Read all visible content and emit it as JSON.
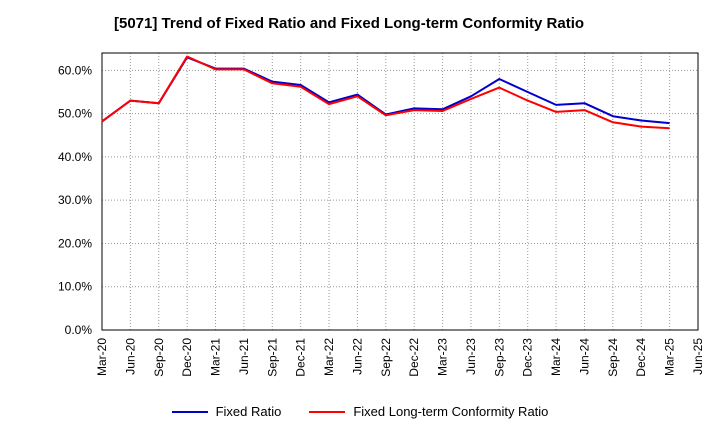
{
  "chart_data": {
    "type": "line",
    "title": "[5071]  Trend of Fixed Ratio and Fixed Long-term Conformity Ratio",
    "xlabel": "",
    "ylabel": "",
    "ylim": [
      0,
      64
    ],
    "grid": true,
    "legend_position": "bottom",
    "x_ticks": [
      "Mar-20",
      "Jun-20",
      "Sep-20",
      "Dec-20",
      "Mar-21",
      "Jun-21",
      "Sep-21",
      "Dec-21",
      "Mar-22",
      "Jun-22",
      "Sep-22",
      "Dec-22",
      "Mar-23",
      "Jun-23",
      "Sep-23",
      "Dec-23",
      "Mar-24",
      "Jun-24",
      "Sep-24",
      "Dec-24",
      "Mar-25",
      "Jun-25"
    ],
    "y_ticks": [
      "0.0%",
      "10.0%",
      "20.0%",
      "30.0%",
      "40.0%",
      "50.0%",
      "60.0%"
    ],
    "y_tick_values": [
      0,
      10,
      20,
      30,
      40,
      50,
      60
    ],
    "x": [
      "Mar-20",
      "Jun-20",
      "Sep-20",
      "Dec-20",
      "Mar-21",
      "Jun-21",
      "Sep-21",
      "Dec-21",
      "Mar-22",
      "Jun-22",
      "Sep-22",
      "Dec-22",
      "Mar-23",
      "Jun-23",
      "Sep-23",
      "Dec-23",
      "Mar-24",
      "Jun-24",
      "Sep-24",
      "Dec-24",
      "Mar-25"
    ],
    "series": [
      {
        "name": "Fixed Ratio",
        "color": "#0000cc",
        "values": [
          48.2,
          53.0,
          52.4,
          63.0,
          60.4,
          60.4,
          57.4,
          56.6,
          52.6,
          54.4,
          49.8,
          51.2,
          51.0,
          54.0,
          58.0,
          55.0,
          52.0,
          52.4,
          49.4,
          48.4,
          47.8
        ]
      },
      {
        "name": "Fixed Long-term Conformity Ratio",
        "color": "#ff0000",
        "values": [
          48.2,
          53.0,
          52.4,
          63.2,
          60.2,
          60.2,
          57.0,
          56.2,
          52.2,
          54.0,
          49.6,
          50.8,
          50.6,
          53.4,
          56.0,
          53.0,
          50.4,
          50.8,
          48.0,
          47.0,
          46.6
        ]
      }
    ]
  }
}
